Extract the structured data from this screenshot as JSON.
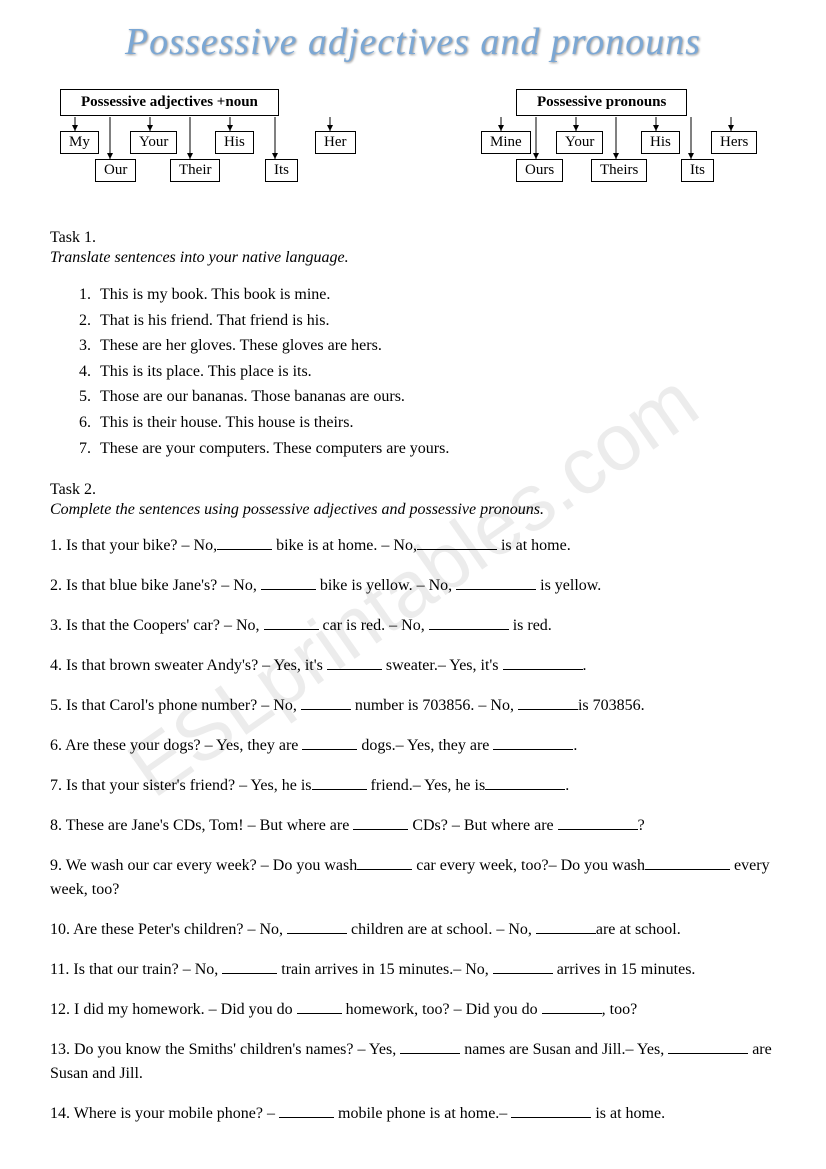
{
  "title": "Possessive adjectives and pronouns",
  "watermark": "ESLprintables.com",
  "diag_left": {
    "head": "Possessive adjectives +noun",
    "row1": [
      "My",
      "Your",
      "His",
      "Her"
    ],
    "row2": [
      "Our",
      "Their",
      "Its"
    ]
  },
  "diag_right": {
    "head": "Possessive pronouns",
    "row1": [
      "Mine",
      "Your",
      "His",
      "Hers"
    ],
    "row2": [
      "Ours",
      "Theirs",
      "Its"
    ]
  },
  "task1": {
    "title": "Task 1.",
    "sub": "Translate sentences into your native language.",
    "items": [
      "This is my book. This book is mine.",
      "That is his friend. That friend is his.",
      "These are her gloves. These gloves are hers.",
      "This is its place. This place is its.",
      "Those are our bananas. Those bananas are ours.",
      "This is their house. This house is theirs.",
      "These are your computers. These computers are yours."
    ]
  },
  "task2": {
    "title": "Task 2.",
    "sub": "Complete the sentences using possessive adjectives and possessive pronouns.",
    "items": [
      {
        "n": "1.",
        "parts": [
          "Is that your bike? – No,",
          55,
          " bike is at home. – No,",
          80,
          " is at home."
        ]
      },
      {
        "n": "2.",
        "parts": [
          "Is that blue bike Jane's? – No, ",
          55,
          " bike is yellow. – No, ",
          80,
          " is yellow."
        ]
      },
      {
        "n": "3.",
        "parts": [
          "Is that the Coopers' car? – No, ",
          55,
          " car  is red. – No, ",
          80,
          " is red."
        ]
      },
      {
        "n": "4.",
        "parts": [
          "Is that brown sweater Andy's? – Yes, it's ",
          55,
          " sweater.– Yes, it's ",
          80,
          "."
        ]
      },
      {
        "n": "5.",
        "parts": [
          "Is that Carol's phone number? – No, ",
          50,
          " number is 703856. – No, ",
          60,
          "is 703856."
        ]
      },
      {
        "n": "6.",
        "parts": [
          "Are these your dogs? – Yes, they are ",
          55,
          " dogs.– Yes, they are ",
          80,
          "."
        ]
      },
      {
        "n": "7.",
        "parts": [
          "Is that your sister's friend? – Yes, he is",
          55,
          " friend.– Yes, he is",
          80,
          "."
        ]
      },
      {
        "n": "8.",
        "parts": [
          "These are Jane's CDs, Tom! – But where are ",
          55,
          " CDs? – But where are ",
          80,
          "?"
        ]
      },
      {
        "n": "9.",
        "parts": [
          "We wash our car every week? – Do you wash",
          55,
          " car every week, too?– Do you wash",
          85,
          " every week, too?"
        ]
      },
      {
        "n": "10.",
        "parts": [
          "Are these Peter's children? – No, ",
          60,
          " children are at school. – No, ",
          60,
          "are at school."
        ]
      },
      {
        "n": "11.",
        "parts": [
          "Is that our train? – No, ",
          55,
          " train arrives in 15 minutes.– No, ",
          60,
          " arrives in 15 minutes."
        ]
      },
      {
        "n": "12.",
        "parts": [
          "I did my homework. – Did you do ",
          45,
          " homework, too? – Did you do ",
          60,
          ", too?"
        ]
      },
      {
        "n": "13.",
        "parts": [
          "Do you know the Smiths' children's names? – Yes, ",
          60,
          " names are Susan and Jill.– Yes, ",
          80,
          " are Susan and Jill."
        ]
      },
      {
        "n": "14.",
        "parts": [
          "Where is your mobile phone? – ",
          55,
          " mobile phone is at home.– ",
          80,
          " is at home."
        ]
      }
    ]
  }
}
